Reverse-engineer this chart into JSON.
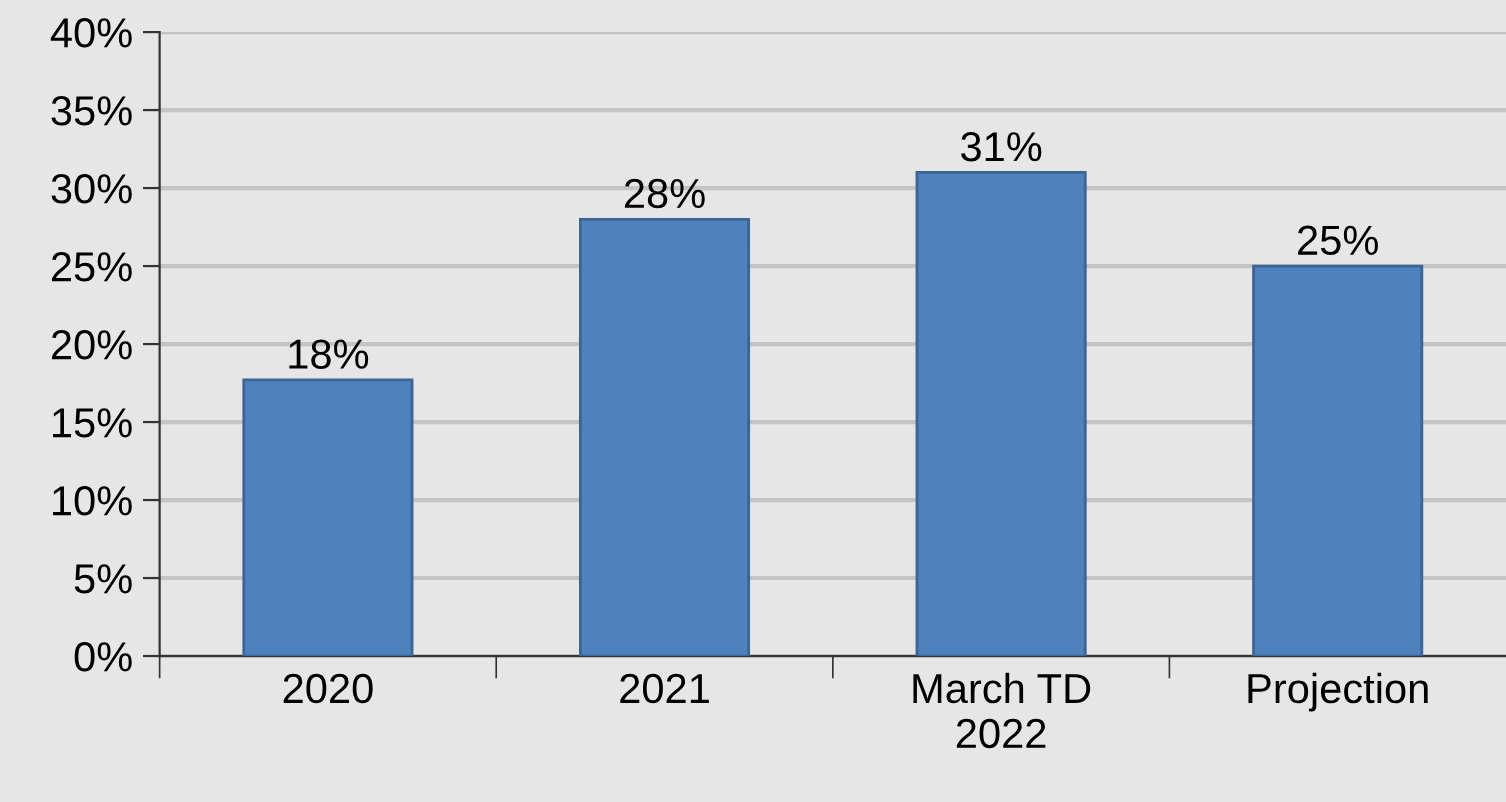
{
  "chart_data": {
    "type": "bar",
    "categories": [
      "2020",
      "2021",
      "March TD\n2022",
      "Projection"
    ],
    "values": [
      17.7,
      28,
      31,
      25
    ],
    "value_labels": [
      "18%",
      "28%",
      "31%",
      "25%"
    ],
    "color": "#4f81bd",
    "ylim": [
      0,
      40
    ],
    "yticks": [
      {
        "value": 0,
        "label": "0%"
      },
      {
        "value": 5,
        "label": "5%"
      },
      {
        "value": 10,
        "label": "10%"
      },
      {
        "value": 15,
        "label": "15%"
      },
      {
        "value": 20,
        "label": "20%"
      },
      {
        "value": 25,
        "label": "25%"
      },
      {
        "value": 30,
        "label": "30%"
      },
      {
        "value": 35,
        "label": "35%"
      },
      {
        "value": 40,
        "label": "40%"
      }
    ],
    "grid": "y",
    "legend": false
  }
}
